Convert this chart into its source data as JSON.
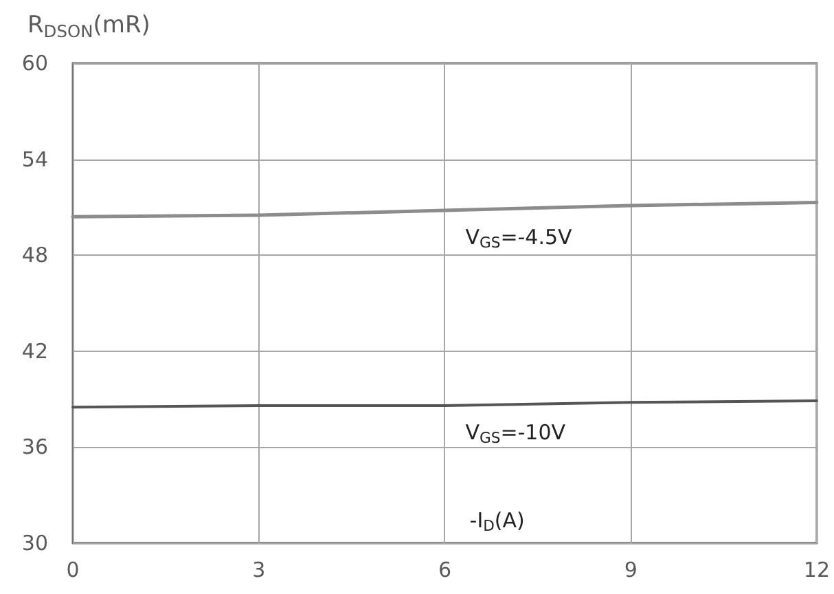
{
  "chart_data": {
    "type": "line",
    "ylabel": "R$_{DSON}$(mR)",
    "xlabel": "-I$_{D}$(A)",
    "x": [
      0,
      3,
      6,
      9,
      12
    ],
    "series": [
      {
        "name": "V$_{GS}$=-4.5V",
        "color": "#8c8c8c",
        "values": [
          50.4,
          50.5,
          50.8,
          51.1,
          51.3
        ]
      },
      {
        "name": "V$_{GS}$=-10V",
        "color": "#555555",
        "values": [
          38.5,
          38.6,
          38.6,
          38.8,
          38.9
        ]
      }
    ],
    "xlim": [
      0,
      12
    ],
    "xticks": [
      0,
      3,
      6,
      9,
      12
    ],
    "ylim": [
      30,
      60
    ],
    "yticks": [
      30,
      36,
      42,
      48,
      54,
      60
    ],
    "grid": true,
    "legend": false,
    "marker": "none",
    "line_style": "solid"
  }
}
